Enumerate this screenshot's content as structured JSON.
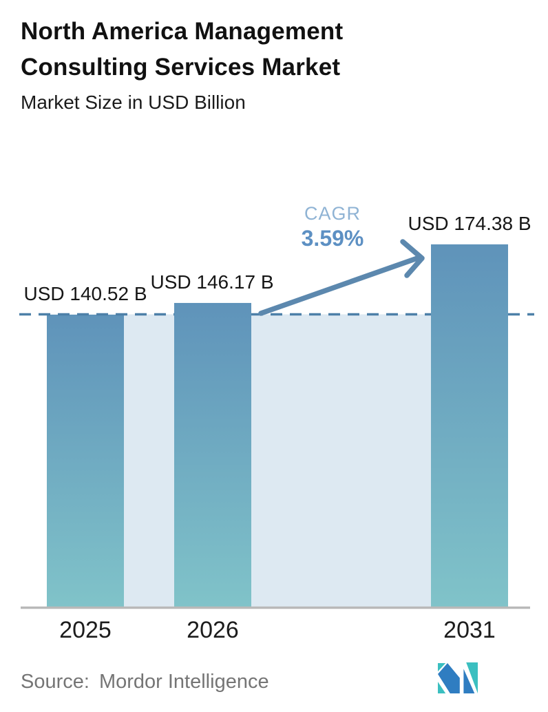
{
  "header": {
    "title": "North America Management Consulting Services Market",
    "subtitle": "Market Size in USD Billion"
  },
  "chart_data": {
    "type": "bar",
    "title": "North America Management Consulting Services Market",
    "subtitle": "Market Size in USD Billion",
    "unit": "USD Billion",
    "categories": [
      "2025",
      "2026",
      "2031"
    ],
    "values": [
      140.52,
      146.17,
      174.38
    ],
    "value_labels": [
      "USD 140.52 B",
      "USD 146.17 B",
      "USD 174.38 B"
    ],
    "cagr": {
      "label": "CAGR",
      "value": "3.59%"
    },
    "baseline": {
      "value": 140.52,
      "style": "dashed"
    },
    "ylim": [
      0,
      185
    ],
    "grid": false,
    "legend": false,
    "annotations": [
      "arrow from 2026 bar to 2031 bar indicating growth"
    ]
  },
  "footer": {
    "source_label": "Source:",
    "source_value": "Mordor Intelligence"
  },
  "icons": {
    "logo": "mordor-intelligence-logo"
  },
  "colors": {
    "bar_top": "#5f93ba",
    "bar_bottom": "#80c3c9",
    "area_fill": "#dde9f2",
    "dashed_line": "#4d80a8",
    "arrow": "#5c88ae",
    "cagr_label": "#8fb3d4",
    "cagr_value": "#5d90c3",
    "axis": "#b9b9b9",
    "text": "#161616",
    "source_text": "#757575",
    "logo_blue": "#2f7dc1",
    "logo_teal": "#3bbfc0"
  }
}
